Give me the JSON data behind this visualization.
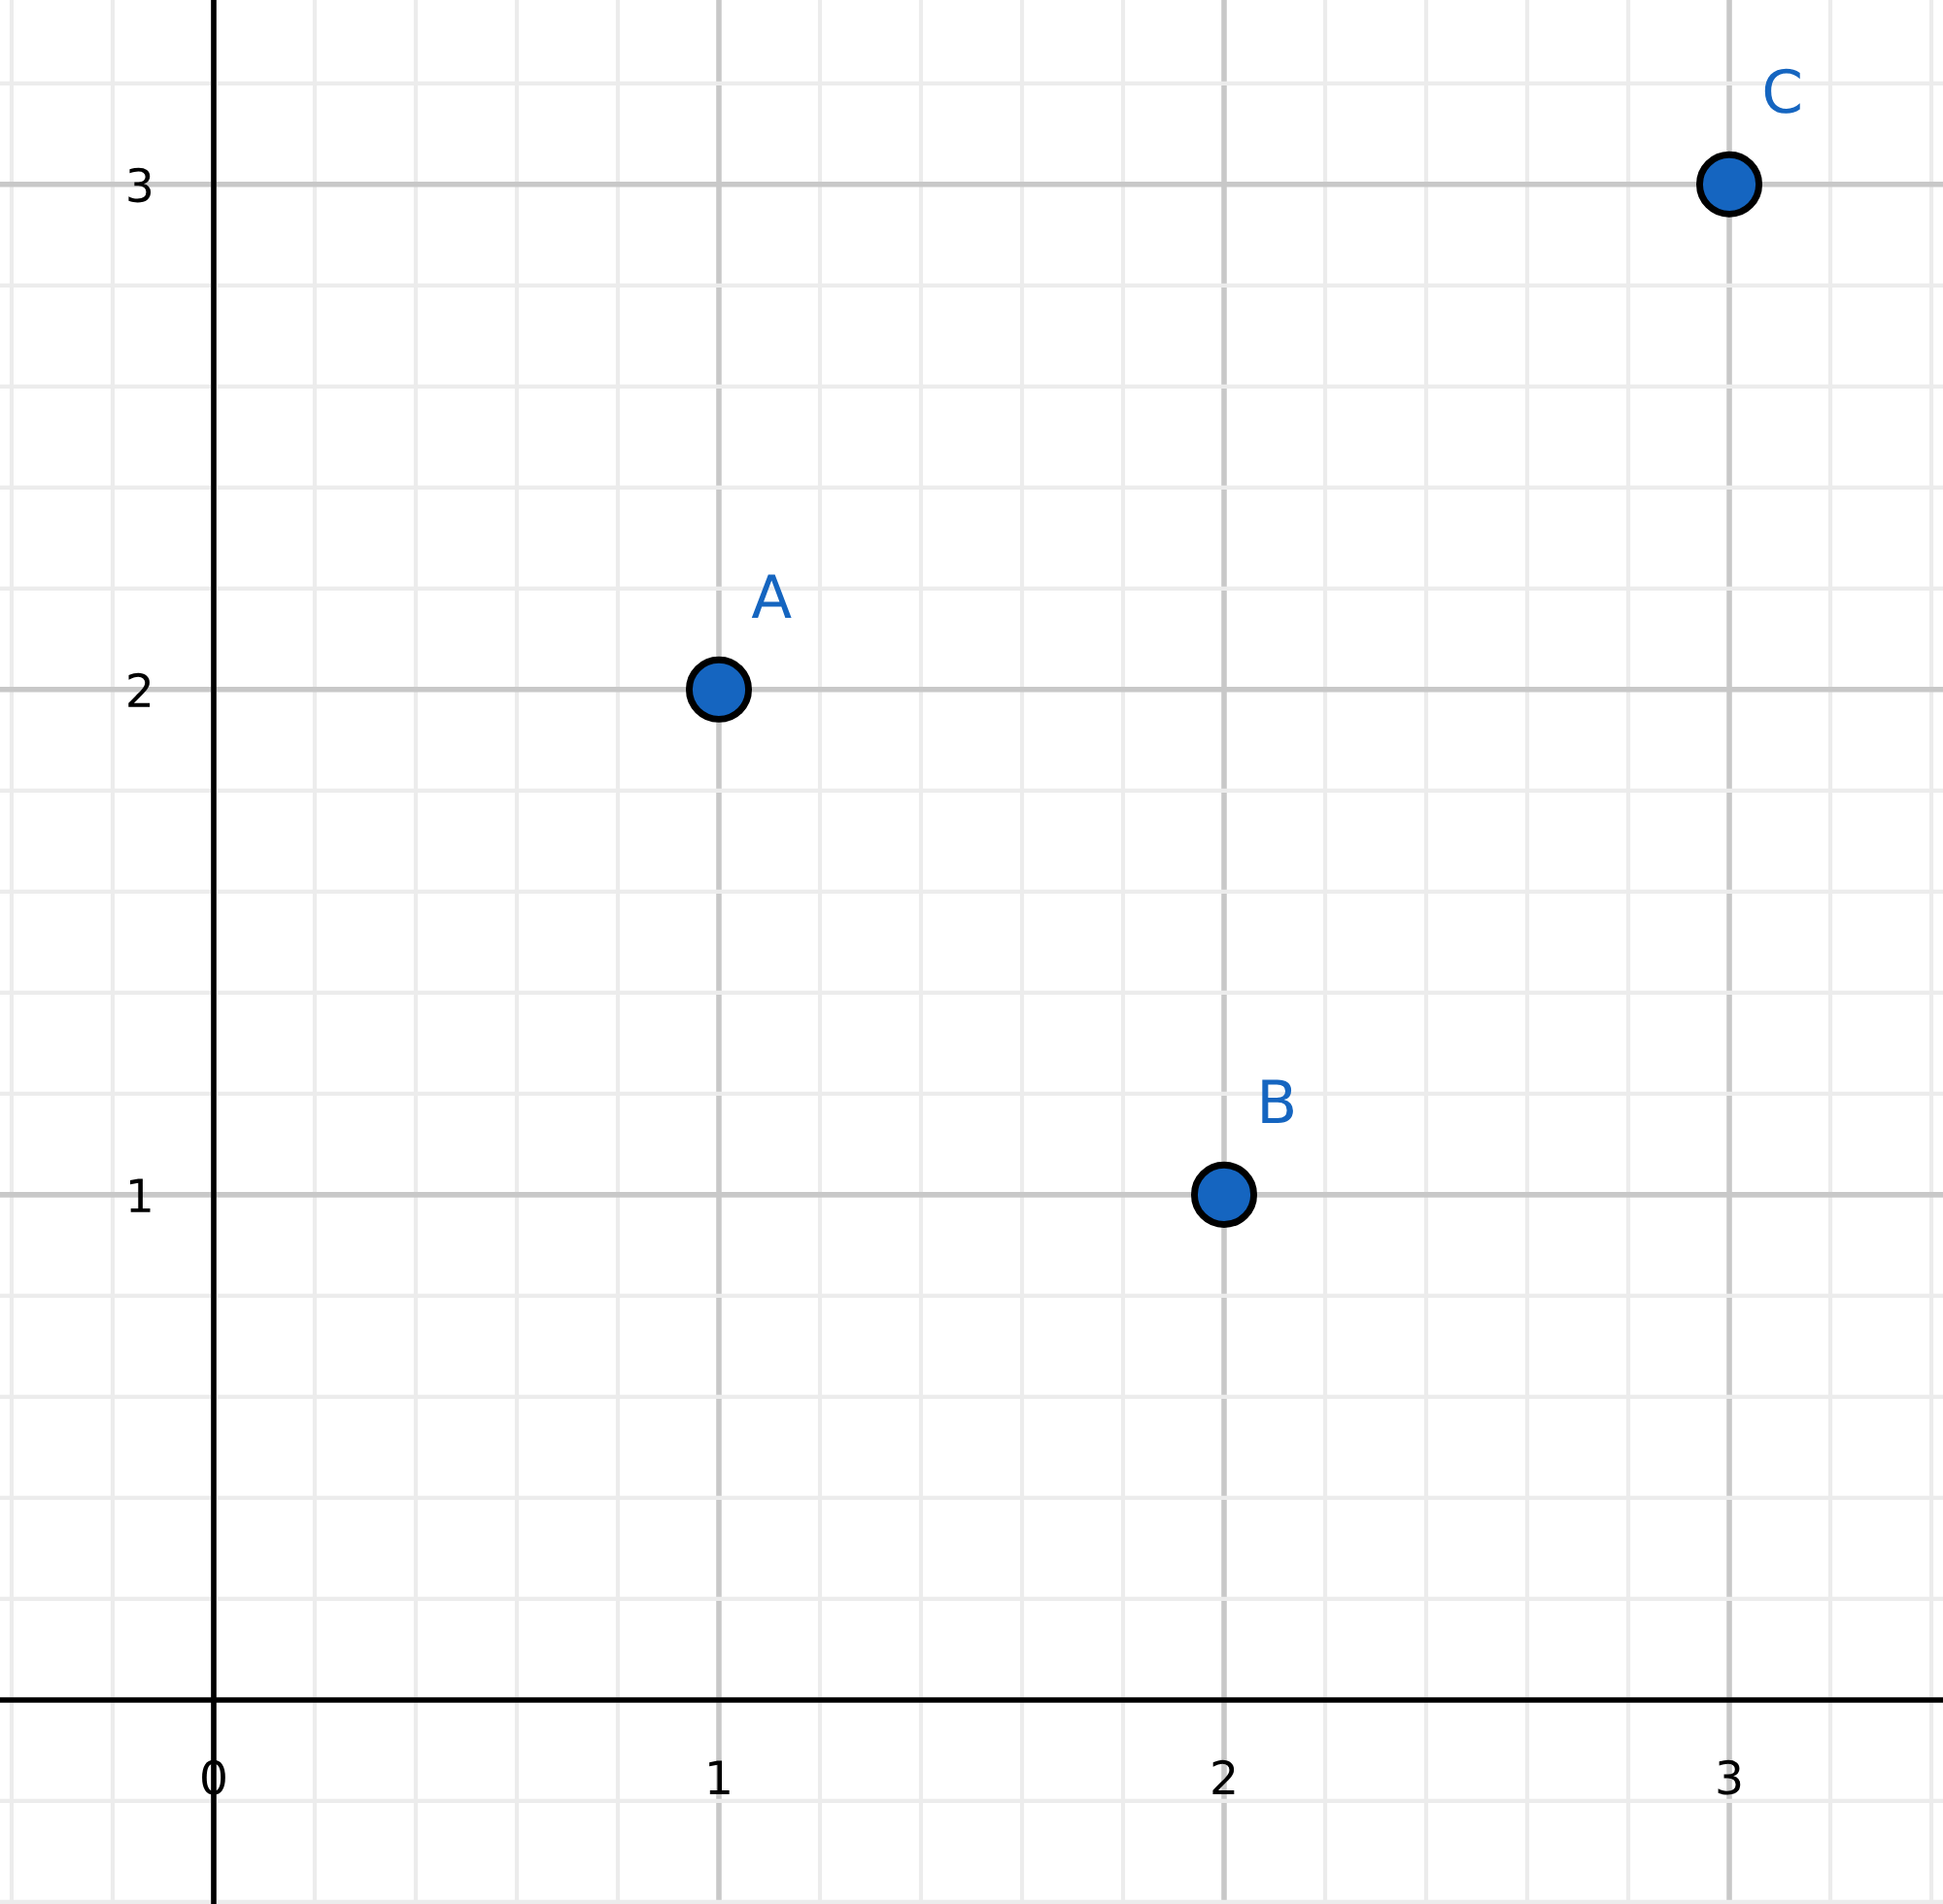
{
  "chart_data": {
    "type": "scatter",
    "x": [
      1,
      2,
      3
    ],
    "series": [
      {
        "color": "#1565c0",
        "values": [
          2,
          1,
          3
        ]
      }
    ],
    "annotations": [
      {
        "text": "A",
        "x": 1,
        "y": 2
      },
      {
        "text": "B",
        "x": 2,
        "y": 1
      },
      {
        "text": "C",
        "x": 3,
        "y": 3
      }
    ],
    "xlim": [
      -0.423,
      3.423
    ],
    "ylim": [
      -0.404,
      3.365
    ],
    "xticks": [
      0,
      1,
      2,
      3
    ],
    "yticks": [
      1,
      2,
      3
    ],
    "grid": true,
    "marker": "circle",
    "legend": false
  }
}
